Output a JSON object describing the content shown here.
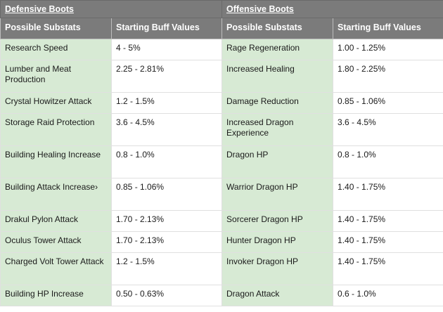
{
  "table": {
    "titles": {
      "left": "Defensive Boots",
      "right": "Offensive Boots"
    },
    "headers": {
      "left_substat": "Possible Substats",
      "left_value": "Starting Buff Values",
      "right_substat": "Possible Substats",
      "right_value": "Starting Buff Values"
    },
    "rows": [
      {
        "def_substat": "Research Speed",
        "def_value": "4 - 5%",
        "off_substat": "Rage Regeneration",
        "off_value": "1.00 - 1.25%"
      },
      {
        "def_substat": "Lumber and Meat Production",
        "def_value": "2.25 - 2.81%",
        "off_substat": "Increased Healing",
        "off_value": "1.80 - 2.25%"
      },
      {
        "def_substat": "Crystal Howitzer Attack",
        "def_value": "1.2 - 1.5%",
        "off_substat": "Damage Reduction",
        "off_value": "0.85 - 1.06%"
      },
      {
        "def_substat": "Storage Raid Protection",
        "def_value": "3.6 - 4.5%",
        "off_substat": "Increased Dragon Experience",
        "off_value": "3.6 - 4.5%"
      },
      {
        "def_substat": "Building Healing Increase",
        "def_value": "0.8 - 1.0%",
        "off_substat": "Dragon HP",
        "off_value": "0.8 - 1.0%"
      },
      {
        "def_substat": "Building Attack Increase›",
        "def_value": "0.85 - 1.06%",
        "off_substat": "Warrior Dragon HP",
        "off_value": "1.40 - 1.75%"
      },
      {
        "def_substat": "Drakul Pylon Attack",
        "def_value": "1.70 - 2.13%",
        "off_substat": "Sorcerer Dragon HP",
        "off_value": "1.40 - 1.75%"
      },
      {
        "def_substat": "Oculus Tower Attack",
        "def_value": "1.70 - 2.13%",
        "off_substat": "Hunter Dragon HP",
        "off_value": "1.40 - 1.75%"
      },
      {
        "def_substat": "Charged Volt Tower Attack",
        "def_value": "1.2 - 1.5%",
        "off_substat": "Invoker Dragon HP",
        "off_value": "1.40 - 1.75%"
      },
      {
        "def_substat": "Building HP Increase",
        "def_value": "0.50 - 0.63%",
        "off_substat": "Dragon Attack",
        "off_value": "0.6 - 1.0%"
      }
    ]
  }
}
